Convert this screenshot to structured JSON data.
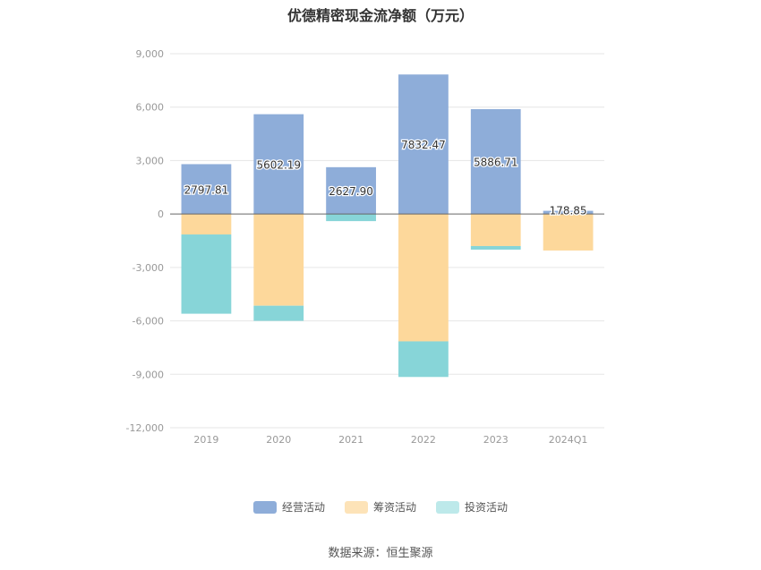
{
  "chart_data": {
    "type": "bar",
    "stacked": true,
    "title": "优德精密现金流净额（万元）",
    "categories": [
      "2019",
      "2020",
      "2021",
      "2022",
      "2023",
      "2024Q1"
    ],
    "series": [
      {
        "name": "经营活动",
        "color": "#8eadd9",
        "values": [
          2797.81,
          5602.19,
          2627.9,
          7832.47,
          5886.71,
          178.85
        ],
        "labels": [
          "2797.81",
          "5602.19",
          "2627.90",
          "7832.47",
          "5886.71",
          "178.85"
        ]
      },
      {
        "name": "筹资活动",
        "color": "#fdd89b",
        "values": [
          -1150,
          -5150,
          0,
          -7150,
          -1800,
          -2050
        ]
      },
      {
        "name": "投资活动",
        "color": "#87d5d8",
        "values": [
          -4450,
          -850,
          -400,
          -2000,
          -200,
          0
        ]
      }
    ],
    "y_ticks": [
      9000,
      6000,
      3000,
      0,
      -3000,
      -6000,
      -9000,
      -12000
    ],
    "y_tick_labels": [
      "9,000",
      "6,000",
      "3,000",
      "0",
      "-3,000",
      "-6,000",
      "-9,000",
      "-12,000"
    ],
    "ylim": [
      -12000,
      9000
    ],
    "grid": true,
    "legend_position": "bottom"
  },
  "legend": [
    {
      "label": "经营活动",
      "color": "#8eadd9"
    },
    {
      "label": "筹资活动",
      "color": "#fde3b8"
    },
    {
      "label": "投资活动",
      "color": "#bde9ea"
    }
  ],
  "source": "数据来源：恒生聚源"
}
